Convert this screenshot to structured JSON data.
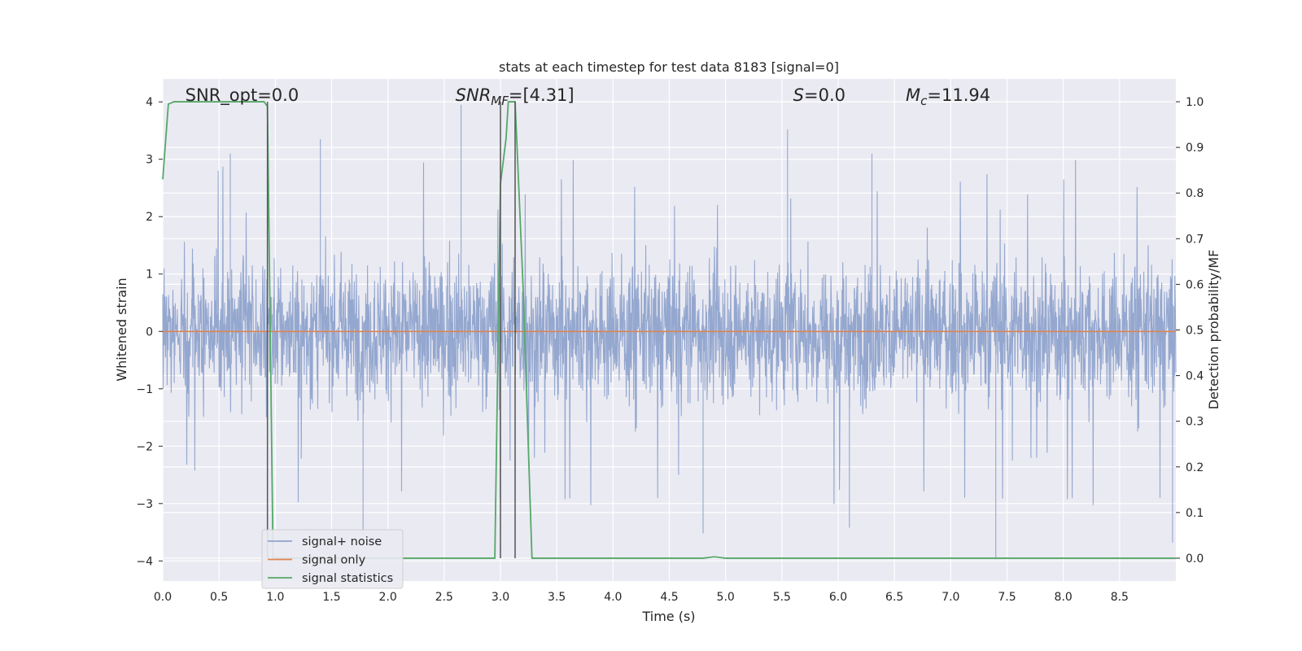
{
  "chart_data": {
    "type": "line",
    "title": "stats at each timestep for test data 8183 [signal=0]",
    "xlabel": "Time (s)",
    "ylabel_left": "Whitened strain",
    "ylabel_right": "Detection probability/MF",
    "xlim": [
      0,
      9.0
    ],
    "ylim_left": [
      -4.35,
      4.4
    ],
    "ylim_right": [
      -0.05,
      1.05
    ],
    "grid": true,
    "legend_placement": "lower-left",
    "x_ticks": [
      0.0,
      0.5,
      1.0,
      1.5,
      2.0,
      2.5,
      3.0,
      3.5,
      4.0,
      4.5,
      5.0,
      5.5,
      6.0,
      6.5,
      7.0,
      7.5,
      8.0,
      8.5
    ],
    "x_tick_labels": [
      "0.0",
      "0.5",
      "1.0",
      "1.5",
      "2.0",
      "2.5",
      "3.0",
      "3.5",
      "4.0",
      "4.5",
      "5.0",
      "5.5",
      "6.0",
      "6.5",
      "7.0",
      "7.5",
      "8.0",
      "8.5"
    ],
    "y_ticks_left": [
      -4,
      -3,
      -2,
      -1,
      0,
      1,
      2,
      3,
      4
    ],
    "y_tick_labels_left": [
      "−4",
      "−3",
      "−2",
      "−1",
      "0",
      "1",
      "2",
      "3",
      "4"
    ],
    "y_ticks_right": [
      0.0,
      0.1,
      0.2,
      0.3,
      0.4,
      0.5,
      0.6,
      0.7,
      0.8,
      0.9,
      1.0
    ],
    "y_tick_labels_right": [
      "0.0",
      "0.1",
      "0.2",
      "0.3",
      "0.4",
      "0.5",
      "0.6",
      "0.7",
      "0.8",
      "0.9",
      "1.0"
    ],
    "annotations": [
      {
        "id": "snr-opt",
        "x": 0.2,
        "text": "SNR_opt=0.0"
      },
      {
        "id": "snr-mf",
        "x": 2.6,
        "text": "SNR_MF=[4.31]"
      },
      {
        "id": "s-value",
        "x": 5.6,
        "text": "S=0.0"
      },
      {
        "id": "mc-value",
        "x": 6.6,
        "text": "M_c=11.94"
      }
    ],
    "vertical_lines": [
      0.93,
      3.0,
      3.13
    ],
    "series": [
      {
        "name": "signal+ noise",
        "axis": "left",
        "color": "#8fa3cc",
        "style": "noise",
        "typical_range": [
          -1.6,
          1.6
        ],
        "spikes": [
          {
            "x": 2.65,
            "y": 3.95
          },
          {
            "x": 5.55,
            "y": 3.52
          },
          {
            "x": 7.4,
            "y": -3.97
          },
          {
            "x": 1.78,
            "y": -3.55
          },
          {
            "x": 4.8,
            "y": -3.52
          },
          {
            "x": 6.1,
            "y": -3.42
          },
          {
            "x": 8.97,
            "y": -3.68
          },
          {
            "x": 1.4,
            "y": 3.35
          },
          {
            "x": 6.3,
            "y": 3.1
          },
          {
            "x": 0.6,
            "y": 3.1
          }
        ]
      },
      {
        "name": "signal only",
        "axis": "left",
        "color": "#dd8452",
        "x": [
          0,
          9.0
        ],
        "y": [
          0,
          0
        ]
      },
      {
        "name": "signal statistics",
        "axis": "right",
        "color": "#55a868",
        "x": [
          0.0,
          0.05,
          0.1,
          0.9,
          0.93,
          0.98,
          1.0,
          2.95,
          3.0,
          3.05,
          3.07,
          3.13,
          3.2,
          3.28,
          4.8,
          4.9,
          5.0,
          9.0
        ],
        "y": [
          0.83,
          0.995,
          1.0,
          1.0,
          0.99,
          0.0,
          0.0,
          0.0,
          0.82,
          0.92,
          1.0,
          1.0,
          0.6,
          0.0,
          0.0,
          0.003,
          0.0,
          0.0
        ]
      }
    ]
  }
}
